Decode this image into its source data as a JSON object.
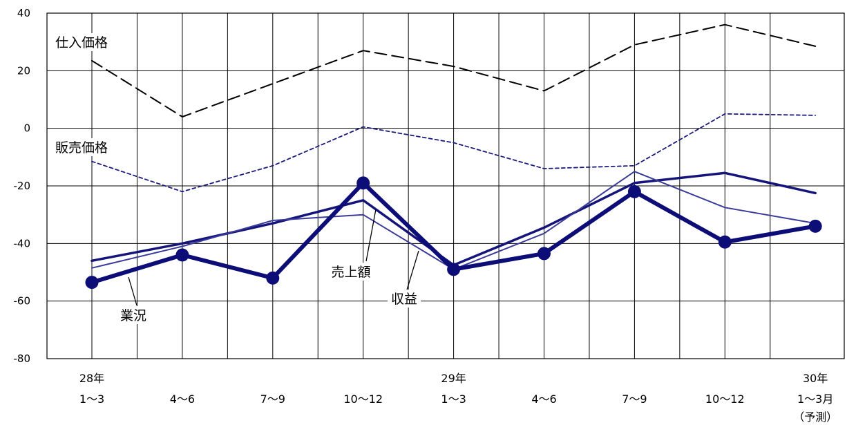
{
  "chart_data": {
    "type": "line",
    "x_tick_rows": [
      [
        "28年",
        "",
        "",
        "",
        "29年",
        "",
        "",
        "",
        "30年"
      ],
      [
        "1～3",
        "4～6",
        "7～9",
        "10～12",
        "1～3",
        "4～6",
        "7～9",
        "10～12",
        "1～3月"
      ],
      [
        "",
        "",
        "",
        "",
        "",
        "",
        "",
        "",
        "（予測）"
      ]
    ],
    "yticks": [
      "40",
      "20",
      "0",
      "-20",
      "-40",
      "-60",
      "-80"
    ],
    "ylim": [
      -80,
      40
    ],
    "grid": true,
    "series": [
      {
        "name": "仕入価格",
        "color": "#000000",
        "style": "dashed",
        "values": [
          23.5,
          4,
          15.5,
          27,
          21.5,
          13,
          29,
          36,
          28.5
        ]
      },
      {
        "name": "販売価格",
        "color": "#1a1a80",
        "style": "dotted",
        "values": [
          -11.5,
          -22,
          -13,
          0.5,
          -5,
          -14,
          -13,
          5,
          4.5
        ]
      },
      {
        "name": "売上額",
        "color": "#14147a",
        "style": "solid-medium",
        "values": [
          -46,
          -40,
          -33,
          -25,
          -47.5,
          -34.5,
          -19,
          -15.5,
          -22.5
        ]
      },
      {
        "name": "収益",
        "color": "#3a3a9a",
        "style": "solid-thin",
        "values": [
          -48.5,
          -41,
          -32,
          -30,
          -49,
          -36.5,
          -15,
          -27.5,
          -33
        ]
      },
      {
        "name": "業況",
        "color": "#0d0d77",
        "style": "solid-thick-markers",
        "values": [
          -53.5,
          -44,
          -52,
          -19,
          -49,
          -43.5,
          -22,
          -39.5,
          -34
        ]
      }
    ]
  }
}
